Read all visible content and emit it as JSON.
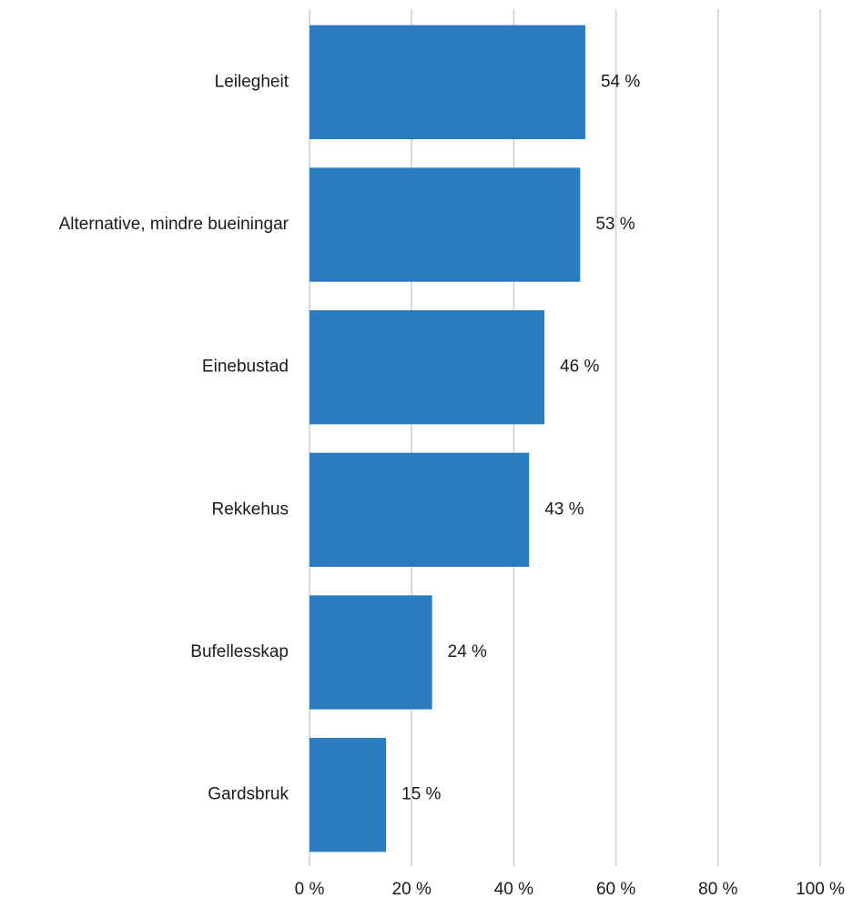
{
  "chart_data": {
    "type": "bar",
    "orientation": "horizontal",
    "categories": [
      "Leilegheit",
      "Alternative, mindre bueiningar",
      "Einebustad",
      "Rekkehus",
      "Bufellesskap",
      "Gardsbruk"
    ],
    "values": [
      54,
      53,
      46,
      43,
      24,
      15
    ],
    "value_labels": [
      "54 %",
      "53 %",
      "46 %",
      "43 %",
      "24 %",
      "15 %"
    ],
    "xlim": [
      0,
      100
    ],
    "x_ticks": [
      0,
      20,
      40,
      60,
      80,
      100
    ],
    "x_tick_labels": [
      "0 %",
      "20 %",
      "40 %",
      "60 %",
      "80 %",
      "100 %"
    ],
    "grid": "vertical",
    "legend": "none",
    "bar_color": "#2a7bbf"
  }
}
